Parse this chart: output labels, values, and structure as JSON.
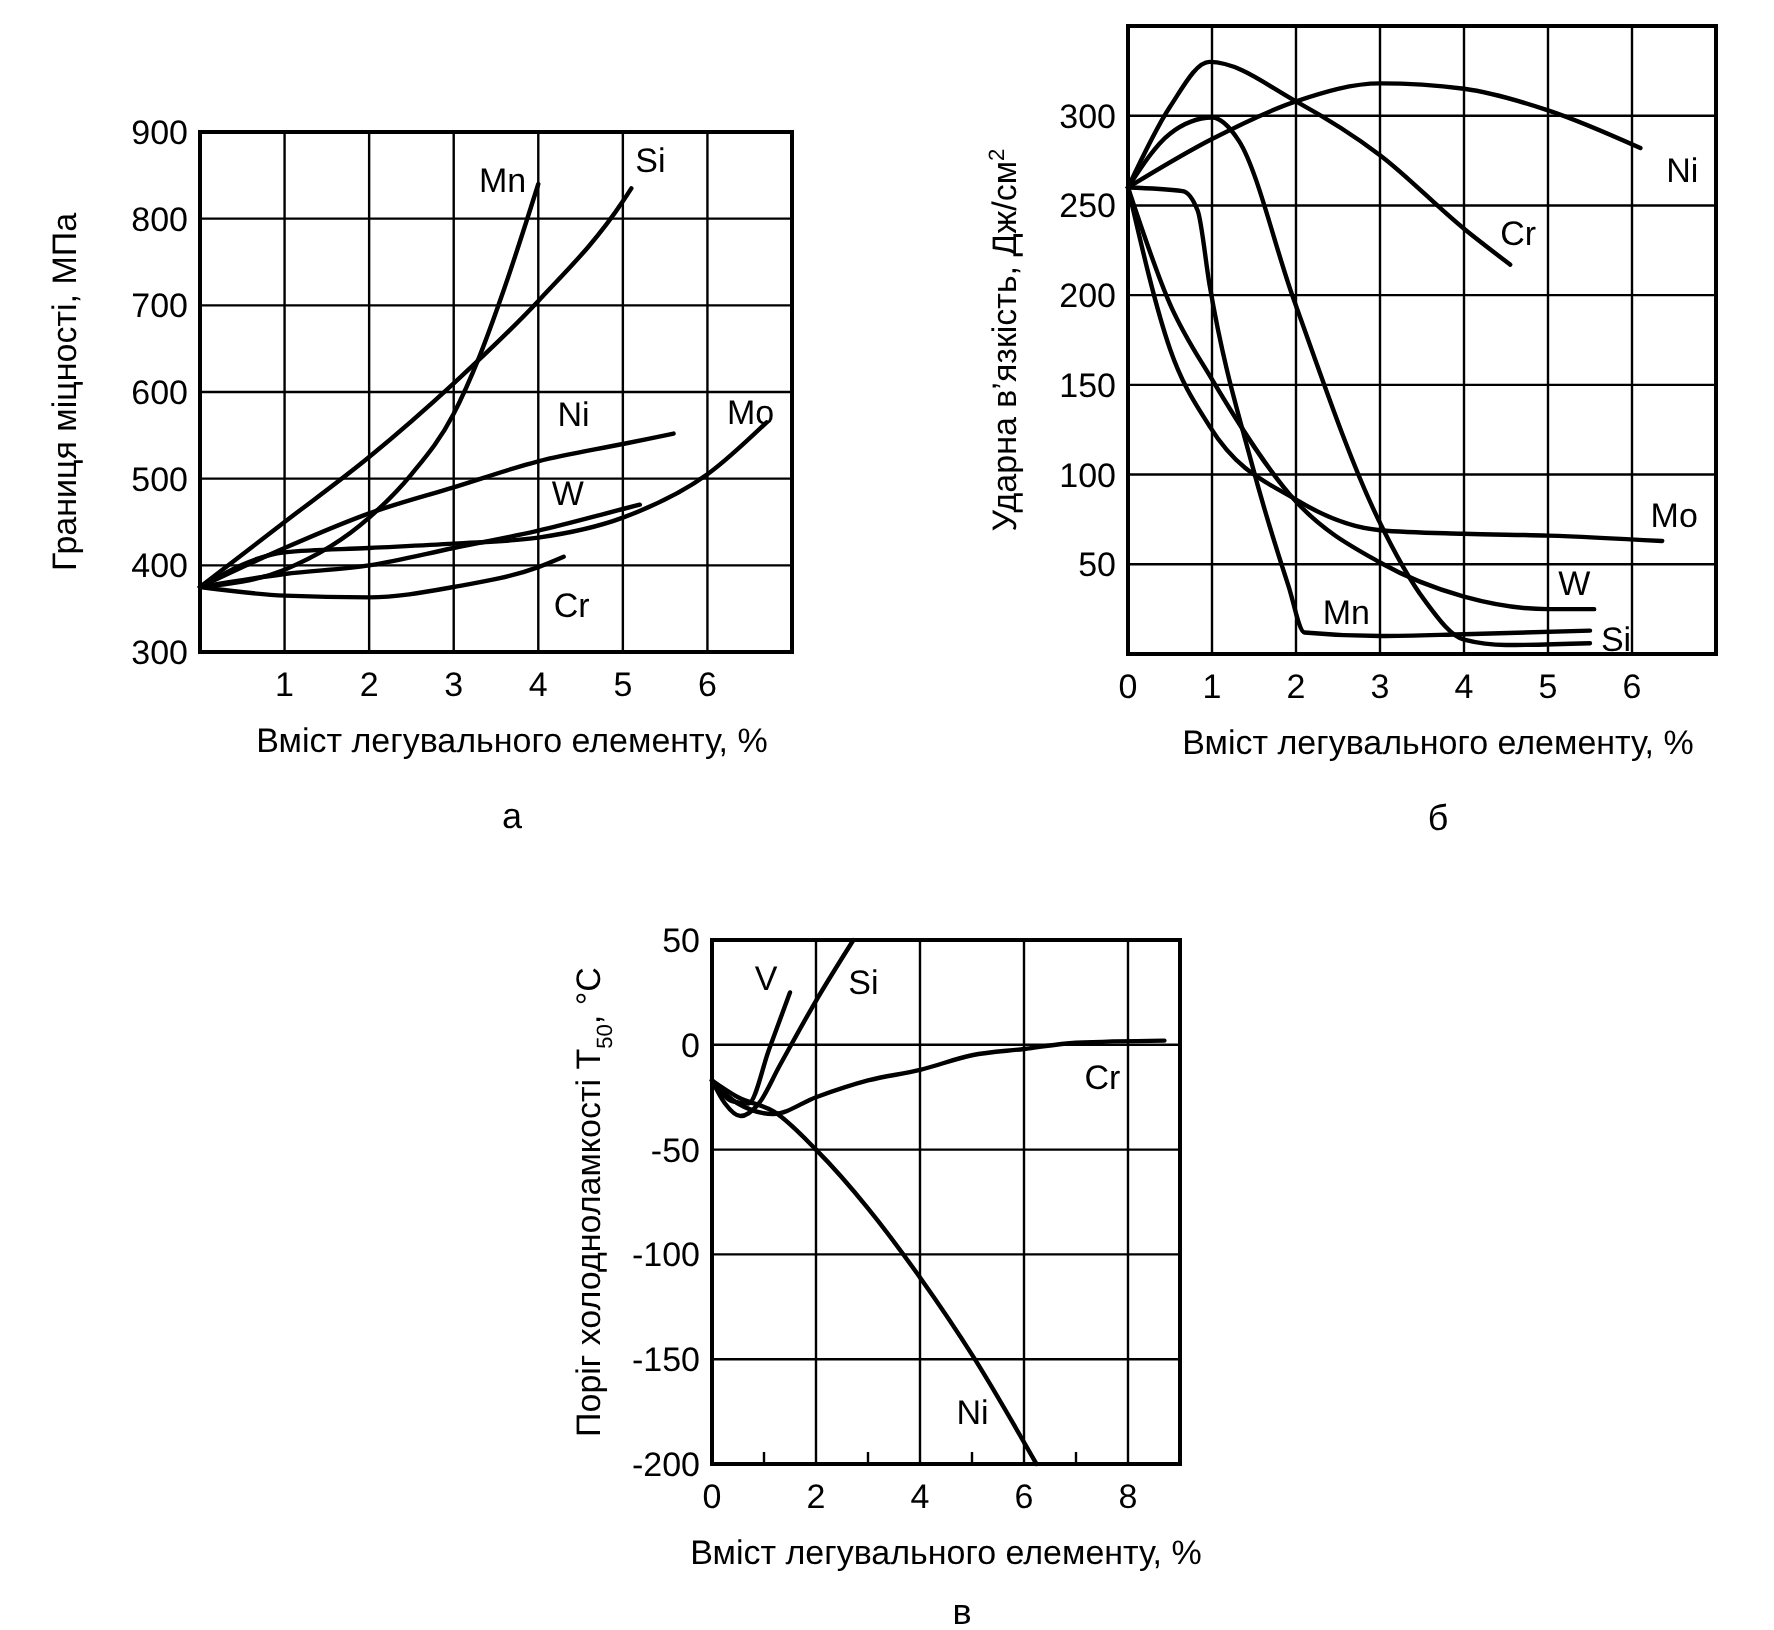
{
  "chart_data": [
    {
      "type": "line",
      "title": "а",
      "xlabel": "Вміст легувального елементу, %",
      "ylabel": "Границя міцності, МПа",
      "xlim": [
        0,
        7
      ],
      "ylim": [
        300,
        900
      ],
      "xticks": [
        1,
        2,
        3,
        4,
        5,
        6
      ],
      "yticks": [
        300,
        400,
        500,
        600,
        700,
        800,
        900
      ],
      "grid": true,
      "legend": false,
      "marker": "none",
      "line_style": "solid",
      "series": [
        {
          "name": "Mn",
          "color": "#000000",
          "x": [
            0,
            1,
            2,
            2.5,
            3,
            3.3,
            3.6,
            4
          ],
          "values": [
            375,
            395,
            455,
            505,
            575,
            640,
            720,
            840
          ]
        },
        {
          "name": "Si",
          "color": "#000000",
          "x": [
            0,
            1,
            2,
            3,
            4,
            5,
            5.1
          ],
          "values": [
            375,
            450,
            525,
            610,
            705,
            820,
            835
          ]
        },
        {
          "name": "Ni",
          "color": "#000000",
          "x": [
            0,
            1,
            2,
            3,
            4,
            5,
            5.6
          ],
          "values": [
            375,
            420,
            460,
            490,
            520,
            540,
            552
          ]
        },
        {
          "name": "W",
          "color": "#000000",
          "x": [
            0,
            1,
            2,
            3,
            4,
            5,
            5.2
          ],
          "values": [
            375,
            390,
            400,
            420,
            440,
            465,
            470
          ]
        },
        {
          "name": "Mo",
          "color": "#000000",
          "x": [
            0,
            1,
            2,
            3,
            4,
            5,
            6,
            6.7
          ],
          "values": [
            375,
            415,
            420,
            425,
            432,
            455,
            505,
            565
          ]
        },
        {
          "name": "Cr",
          "color": "#000000",
          "x": [
            0,
            1,
            2,
            3,
            4,
            4.3
          ],
          "values": [
            375,
            365,
            363,
            375,
            398,
            410
          ]
        }
      ]
    },
    {
      "type": "line",
      "title": "б",
      "xlabel": "Вміст легувального елементу, %",
      "ylabel": "Ударна в’язкість, Дж/см$^{2}$",
      "xlim": [
        0,
        7
      ],
      "ylim": [
        0,
        350
      ],
      "xticks": [
        0,
        1,
        2,
        3,
        4,
        5,
        6
      ],
      "yticks": [
        50,
        100,
        150,
        200,
        250,
        300
      ],
      "grid": true,
      "legend": false,
      "marker": "none",
      "line_style": "solid",
      "series": [
        {
          "name": "Ni",
          "color": "#000000",
          "x": [
            0,
            1,
            2,
            3,
            4,
            5,
            6.1
          ],
          "values": [
            260,
            287,
            308,
            318,
            315,
            303,
            282
          ]
        },
        {
          "name": "Cr",
          "color": "#000000",
          "x": [
            0,
            0.5,
            0.97,
            2,
            3,
            4,
            4.55
          ],
          "values": [
            260,
            305,
            330,
            308,
            278,
            237,
            217
          ]
        },
        {
          "name": "Mo",
          "color": "#000000",
          "x": [
            0,
            0.5,
            0.97,
            2,
            3,
            4,
            5,
            6.36
          ],
          "values": [
            260,
            170,
            127,
            86,
            69,
            67,
            66,
            63
          ]
        },
        {
          "name": "W",
          "color": "#000000",
          "x": [
            0,
            0.5,
            1,
            2,
            3,
            4,
            5,
            5.55
          ],
          "values": [
            260,
            195,
            153,
            85,
            51,
            32,
            25,
            25
          ]
        },
        {
          "name": "Si",
          "color": "#000000",
          "x": [
            0,
            0.5,
            1,
            1.32,
            1.97,
            2.98,
            3.53,
            4,
            4.5,
            5.5
          ],
          "values": [
            260,
            290,
            299,
            286,
            198,
            75,
            30,
            8,
            5,
            6
          ]
        },
        {
          "name": "Mn",
          "color": "#000000",
          "x": [
            0,
            0.65,
            0.83,
            0.97,
            1.48,
            1.91,
            2.1,
            3,
            4,
            5.5
          ],
          "values": [
            260,
            258,
            247,
            206,
            105,
            38,
            12,
            10,
            11,
            13
          ]
        }
      ]
    },
    {
      "type": "line",
      "title": "в",
      "xlabel": "Вміст легувального елементу, %",
      "ylabel": "Поріг холодноламкості T$_{50}$, °C",
      "xlim": [
        0,
        9
      ],
      "ylim": [
        -200,
        50
      ],
      "xticks": [
        0,
        {
          "value": 1,
          "label": null
        },
        2,
        {
          "value": 3,
          "label": null
        },
        4,
        {
          "value": 5,
          "label": null
        },
        6,
        {
          "value": 7,
          "label": null
        },
        8
      ],
      "yticks": [
        -200,
        -150,
        -100,
        -50,
        0,
        50
      ],
      "grid": true,
      "legend": false,
      "marker": "none",
      "line_style": "solid",
      "series": [
        {
          "name": "V",
          "color": "#000000",
          "x": [
            0,
            0.4,
            0.7,
            1.1,
            1.5
          ],
          "values": [
            -17,
            -27,
            -28,
            -2,
            25
          ]
        },
        {
          "name": "Si",
          "color": "#000000",
          "x": [
            0,
            0.25,
            0.55,
            0.9,
            1.3,
            2,
            2.72
          ],
          "values": [
            -17,
            -28,
            -34,
            -28,
            -10,
            21,
            50
          ]
        },
        {
          "name": "Cr",
          "color": "#000000",
          "x": [
            0,
            0.5,
            1.18,
            2,
            3,
            4,
            5,
            6,
            7,
            8.7
          ],
          "values": [
            -17,
            -28,
            -33,
            -25,
            -17,
            -12,
            -5,
            -2,
            1,
            2
          ]
        },
        {
          "name": "Ni",
          "color": "#000000",
          "x": [
            0,
            0.5,
            1.2,
            2,
            3,
            4,
            5.03,
            6.24
          ],
          "values": [
            -17,
            -25,
            -32,
            -50,
            -78,
            -111,
            -149,
            -200
          ]
        }
      ]
    }
  ]
}
